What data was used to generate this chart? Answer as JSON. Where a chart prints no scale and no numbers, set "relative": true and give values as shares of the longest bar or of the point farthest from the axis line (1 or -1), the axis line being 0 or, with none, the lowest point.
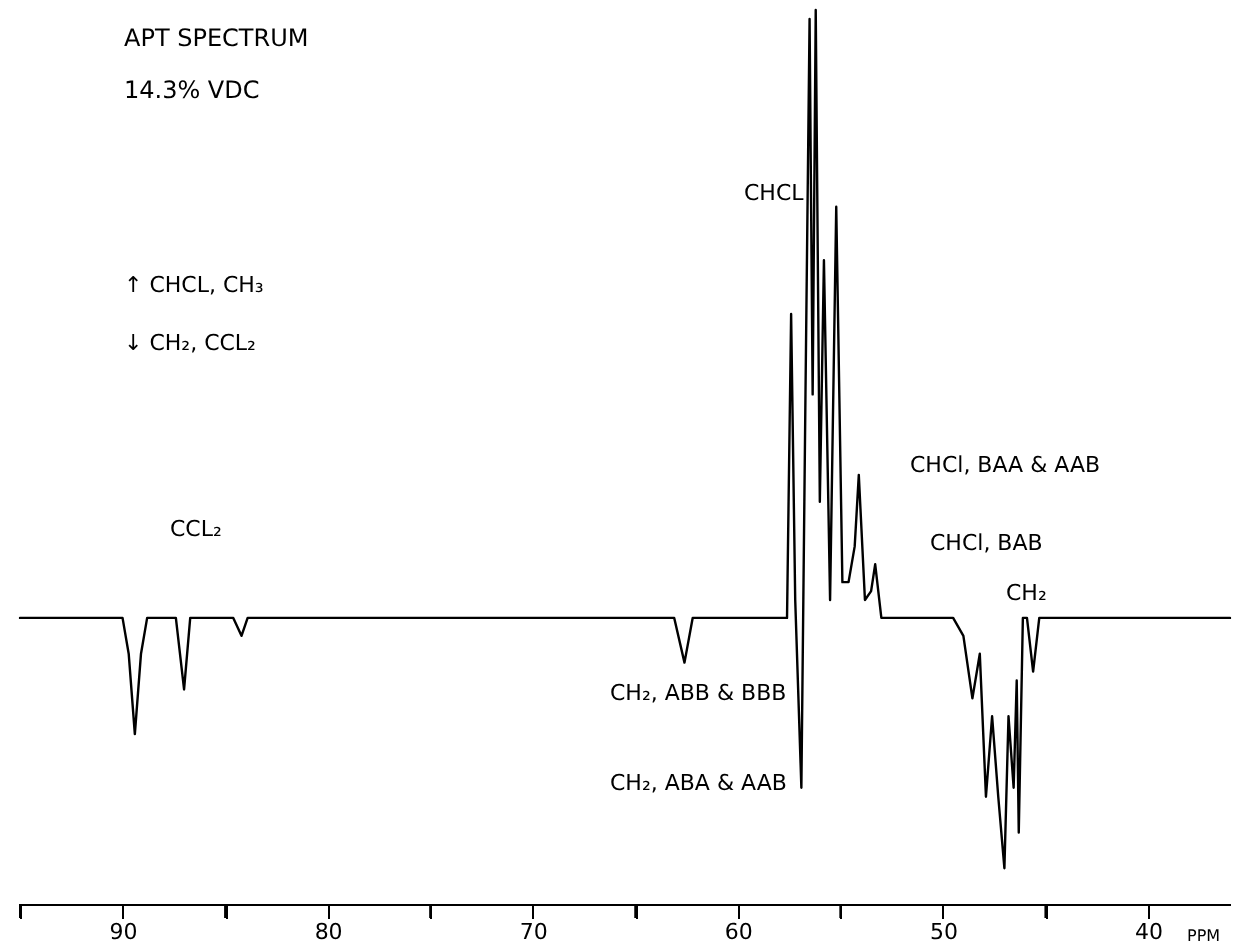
{
  "chart_data": {
    "type": "line",
    "title": "APT SPECTRUM",
    "subtitle": "14.3% VDC",
    "xlabel": "PPM",
    "relative": true,
    "grid": false,
    "xlim": [
      95,
      36
    ],
    "xticks": [
      {
        "value": 95,
        "label": null
      },
      90,
      {
        "value": 85,
        "label": null
      },
      80,
      {
        "value": 75,
        "label": null
      },
      70,
      {
        "value": 65,
        "label": null
      },
      60,
      {
        "value": 55,
        "label": null
      },
      50,
      {
        "value": 45,
        "label": null
      },
      40
    ],
    "series": [
      {
        "color": "#000000",
        "x": [
          95,
          90,
          89.7,
          89.4,
          89.1,
          88.8,
          87.4,
          87.0,
          86.7,
          84.6,
          84.2,
          83.9,
          70,
          63.1,
          62.6,
          62.2,
          59,
          58,
          57.6,
          57.4,
          57.2,
          56.9,
          56.7,
          56.5,
          56.35,
          56.2,
          56.0,
          55.8,
          55.5,
          55.2,
          54.9,
          54.6,
          54.3,
          54.1,
          53.8,
          53.5,
          53.3,
          53.0,
          52.0,
          49.5,
          49.0,
          48.56,
          48.2,
          47.9,
          47.6,
          47.3,
          47.0,
          46.8,
          46.55,
          46.4,
          46.3,
          46.1,
          45.9,
          45.6,
          45.3,
          43.8,
          36
        ],
        "values": [
          0.32,
          0.32,
          0.28,
          0.19,
          0.28,
          0.32,
          0.32,
          0.24,
          0.32,
          0.32,
          0.3,
          0.32,
          0.32,
          0.32,
          0.27,
          0.32,
          0.32,
          0.32,
          0.32,
          0.66,
          0.34,
          0.13,
          0.57,
          0.99,
          0.57,
          1,
          0.45,
          0.72,
          0.34,
          0.78,
          0.36,
          0.36,
          0.4,
          0.48,
          0.34,
          0.35,
          0.38,
          0.32,
          0.32,
          0.32,
          0.3,
          0.23,
          0.28,
          0.12,
          0.21,
          0.12,
          0.04,
          0.21,
          0.13,
          0.25,
          0.08,
          0.32,
          0.32,
          0.26,
          0.32,
          0.32,
          0.32
        ]
      }
    ],
    "annotations": [
      "CCL₂",
      "CHCL",
      "CHCl, BAA & AAB",
      "CHCl, BAB",
      "CH₂",
      "CH₂, ABB & BBB",
      "CH₂, ABA & AAB",
      "↑ CHCL, CH₃",
      "↓ CH₂, CCL₂"
    ]
  }
}
